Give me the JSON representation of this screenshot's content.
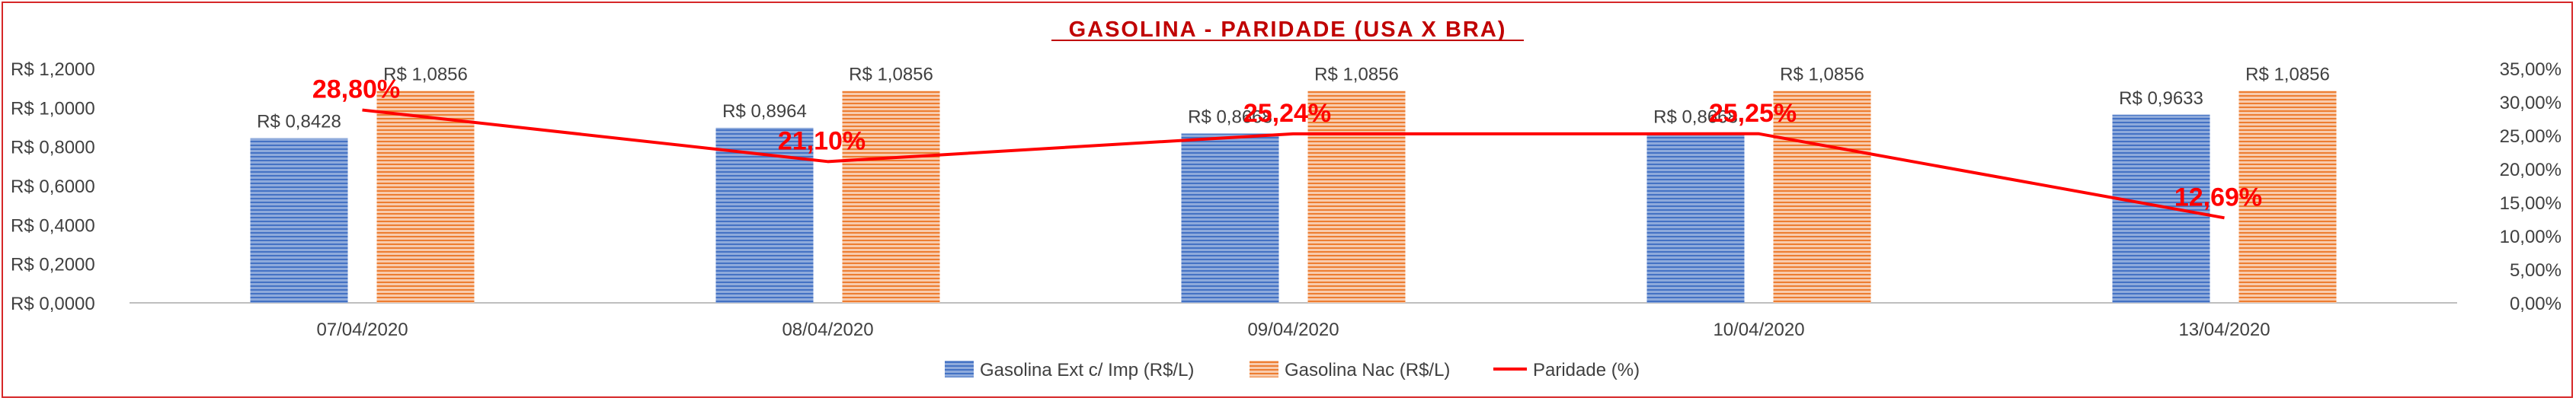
{
  "chart_data": {
    "type": "bar",
    "title": "GASOLINA - PARIDADE (USA X BRA)",
    "categories": [
      "07/04/2020",
      "08/04/2020",
      "09/04/2020",
      "10/04/2020",
      "13/04/2020"
    ],
    "series": [
      {
        "name": "Gasolina Ext c/ Imp (R$/L)",
        "type": "bar",
        "axis": "left",
        "values": [
          0.8428,
          0.8964,
          0.8668,
          0.8668,
          0.9633
        ],
        "labels": [
          "R$ 0,8428",
          "R$ 0,8964",
          "R$ 0,8668",
          "R$ 0,8668",
          "R$ 0,9633"
        ],
        "color": "#4472c4"
      },
      {
        "name": "Gasolina Nac (R$/L)",
        "type": "bar",
        "axis": "left",
        "values": [
          1.0856,
          1.0856,
          1.0856,
          1.0856,
          1.0856
        ],
        "labels": [
          "R$ 1,0856",
          "R$ 1,0856",
          "R$ 1,0856",
          "R$ 1,0856",
          "R$ 1,0856"
        ],
        "color": "#ed7d31"
      },
      {
        "name": "Paridade (%)",
        "type": "line",
        "axis": "right",
        "values": [
          28.8,
          21.1,
          25.24,
          25.25,
          12.69
        ],
        "labels": [
          "28,80%",
          "21,10%",
          "25,24%",
          "25,25%",
          "12,69%"
        ],
        "color": "#ff0000"
      }
    ],
    "y_left": {
      "range": [
        0,
        1.2
      ],
      "ticks": [
        0,
        0.2,
        0.4,
        0.6,
        0.8,
        1.0,
        1.2
      ],
      "tick_labels": [
        "R$ 0,0000",
        "R$ 0,2000",
        "R$ 0,4000",
        "R$ 0,6000",
        "R$ 0,8000",
        "R$ 1,0000",
        "R$ 1,2000"
      ]
    },
    "y_right": {
      "range": [
        0,
        35
      ],
      "ticks": [
        0,
        5,
        10,
        15,
        20,
        25,
        30,
        35
      ],
      "tick_labels": [
        "0,00%",
        "5,00%",
        "10,00%",
        "15,00%",
        "20,00%",
        "25,00%",
        "30,00%",
        "35,00%"
      ]
    },
    "grid": false,
    "legend_position": "bottom"
  }
}
